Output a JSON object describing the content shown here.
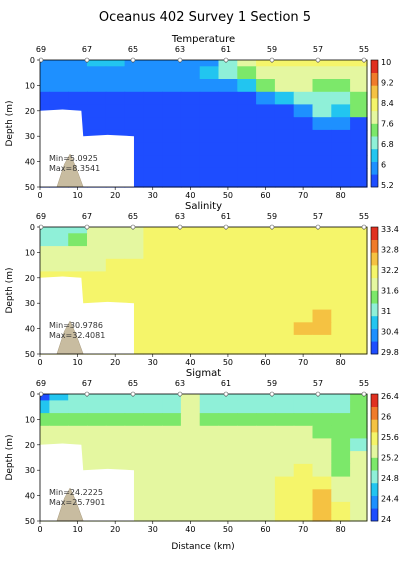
{
  "figure": {
    "title": "Oceanus 402 Survey 1 Section 5",
    "xlabel": "Distance (km)",
    "ylabel": "Depth (m)",
    "station_labels": [
      "69",
      "67",
      "65",
      "63",
      "61",
      "59",
      "57",
      "55"
    ],
    "x_ticks": [
      0,
      10,
      20,
      30,
      40,
      50,
      60,
      70,
      80
    ],
    "depth_ticks": [
      0,
      10,
      20,
      30,
      40,
      50
    ]
  },
  "chart_data": [
    {
      "type": "heatmap",
      "title": "Temperature",
      "xlabel": "",
      "ylabel": "Depth (m)",
      "xlim": [
        0,
        87
      ],
      "ylim": [
        50,
        0
      ],
      "stats": {
        "min": "Min=5.0925",
        "max": "Max=8.3541"
      },
      "colorbar": {
        "ticks": [
          "10",
          "9.2",
          "8.4",
          "7.6",
          "6.8",
          "6",
          "5.2"
        ],
        "range": [
          5.2,
          10
        ]
      },
      "x": [
        0,
        5,
        10,
        15,
        20,
        25,
        30,
        35,
        40,
        45,
        50,
        55,
        60,
        65,
        70,
        75,
        80,
        85
      ],
      "depth": [
        0,
        5,
        10,
        15,
        20,
        25,
        30,
        35,
        40,
        45,
        50
      ],
      "values": [
        [
          5.8,
          6.0,
          6.0,
          6.4,
          6.4,
          6.0,
          6.0,
          6.0,
          6.0,
          6.0,
          7.0,
          8.0,
          8.4,
          8.4,
          8.4,
          8.4,
          8.4,
          8.4
        ],
        [
          6.0,
          6.0,
          6.0,
          6.0,
          6.0,
          6.0,
          6.0,
          6.0,
          6.0,
          6.2,
          7.0,
          7.6,
          8.0,
          8.0,
          8.0,
          8.0,
          8.0,
          8.0
        ],
        [
          6.0,
          6.0,
          5.8,
          5.8,
          5.8,
          5.8,
          5.8,
          5.8,
          5.8,
          5.8,
          6.0,
          6.4,
          7.2,
          7.8,
          7.8,
          7.6,
          7.4,
          7.8
        ],
        [
          5.4,
          5.4,
          5.4,
          5.4,
          5.4,
          5.4,
          5.4,
          5.4,
          5.4,
          5.4,
          5.4,
          5.6,
          6.0,
          6.6,
          7.0,
          7.0,
          7.0,
          7.6
        ],
        [
          5.2,
          5.2,
          5.2,
          5.2,
          5.2,
          5.2,
          5.2,
          5.2,
          5.2,
          5.2,
          5.2,
          5.2,
          5.2,
          5.4,
          6.0,
          6.8,
          6.6,
          7.4
        ],
        [
          5.2,
          5.2,
          5.2,
          5.2,
          5.2,
          5.2,
          5.2,
          5.2,
          5.2,
          5.2,
          5.2,
          5.2,
          5.2,
          5.2,
          5.2,
          6.0,
          6.0,
          5.4
        ],
        [
          5.2,
          5.2,
          5.2,
          5.2,
          5.2,
          5.2,
          5.2,
          5.2,
          5.2,
          5.2,
          5.2,
          5.2,
          5.2,
          5.2,
          5.2,
          5.4,
          5.6,
          5.2
        ],
        [
          5.2,
          5.2,
          5.2,
          5.2,
          5.2,
          5.2,
          5.2,
          5.2,
          5.2,
          5.2,
          5.2,
          5.2,
          5.2,
          5.2,
          5.2,
          5.2,
          5.4,
          5.2
        ],
        [
          5.2,
          5.2,
          5.2,
          5.2,
          5.2,
          5.2,
          5.2,
          5.2,
          5.2,
          5.2,
          5.2,
          5.2,
          5.2,
          5.2,
          5.2,
          5.2,
          5.4,
          5.2
        ],
        [
          5.2,
          5.2,
          5.2,
          5.2,
          5.2,
          5.2,
          5.2,
          5.2,
          5.2,
          5.2,
          5.2,
          5.2,
          5.2,
          5.2,
          5.2,
          5.2,
          5.2,
          5.2
        ],
        [
          5.2,
          5.2,
          5.2,
          5.2,
          5.2,
          5.2,
          5.2,
          5.2,
          5.2,
          5.2,
          5.2,
          5.2,
          5.2,
          5.2,
          5.2,
          5.2,
          5.2,
          5.2
        ]
      ]
    },
    {
      "type": "heatmap",
      "title": "Salinity",
      "xlabel": "",
      "ylabel": "Depth (m)",
      "xlim": [
        0,
        87
      ],
      "ylim": [
        50,
        0
      ],
      "stats": {
        "min": "Min=30.9786",
        "max": "Max=32.4081"
      },
      "colorbar": {
        "ticks": [
          "33.4",
          "32.8",
          "32.2",
          "31.6",
          "31",
          "30.4",
          "29.8"
        ],
        "range": [
          29.8,
          33.4
        ]
      },
      "x": [
        0,
        5,
        10,
        15,
        20,
        25,
        30,
        35,
        40,
        45,
        50,
        55,
        60,
        65,
        70,
        75,
        80,
        85
      ],
      "depth": [
        0,
        5,
        10,
        15,
        20,
        25,
        30,
        35,
        40,
        45,
        50
      ],
      "values": [
        [
          30.9,
          31.2,
          31.2,
          31.6,
          31.6,
          31.6,
          32.0,
          32.0,
          32.0,
          32.0,
          32.0,
          32.0,
          32.0,
          32.0,
          32.0,
          32.0,
          32.0,
          32.0
        ],
        [
          31.2,
          31.2,
          31.4,
          31.6,
          31.6,
          31.6,
          32.0,
          32.0,
          32.0,
          32.0,
          32.0,
          32.0,
          32.0,
          32.0,
          32.0,
          32.0,
          32.0,
          32.0
        ],
        [
          31.6,
          31.6,
          31.6,
          31.6,
          31.6,
          31.6,
          32.0,
          32.0,
          32.0,
          32.0,
          32.0,
          32.0,
          32.0,
          32.0,
          32.0,
          32.0,
          32.0,
          32.0
        ],
        [
          31.6,
          31.6,
          31.6,
          31.6,
          32.0,
          32.0,
          32.0,
          32.0,
          32.0,
          32.0,
          32.0,
          32.0,
          32.0,
          32.0,
          32.0,
          32.0,
          32.0,
          32.0
        ],
        [
          32.0,
          32.0,
          32.0,
          32.0,
          32.0,
          32.0,
          32.0,
          32.0,
          32.0,
          32.0,
          32.0,
          32.0,
          32.0,
          32.0,
          32.0,
          32.0,
          32.0,
          32.0
        ],
        [
          32.0,
          32.0,
          32.0,
          32.0,
          32.0,
          32.0,
          32.0,
          32.0,
          32.0,
          32.0,
          32.0,
          32.0,
          32.0,
          32.0,
          32.0,
          32.0,
          32.0,
          32.0
        ],
        [
          32.0,
          32.0,
          32.0,
          32.0,
          32.0,
          32.0,
          32.0,
          32.0,
          32.0,
          32.0,
          32.0,
          32.0,
          32.1,
          32.2,
          32.2,
          32.3,
          32.2,
          32.0
        ],
        [
          32.0,
          32.0,
          32.0,
          32.0,
          32.0,
          32.0,
          32.0,
          32.0,
          32.0,
          32.0,
          32.0,
          32.0,
          32.2,
          32.3,
          32.3,
          32.4,
          32.3,
          32.0
        ],
        [
          32.0,
          32.0,
          32.0,
          32.0,
          32.0,
          32.0,
          32.0,
          32.0,
          32.0,
          32.0,
          32.0,
          32.0,
          32.2,
          32.3,
          32.4,
          32.4,
          32.3,
          32.0
        ],
        [
          32.0,
          32.0,
          32.0,
          32.0,
          32.0,
          32.0,
          32.0,
          32.0,
          32.0,
          32.0,
          32.0,
          32.0,
          32.0,
          32.2,
          32.3,
          32.3,
          32.2,
          32.0
        ],
        [
          32.0,
          32.0,
          32.0,
          32.0,
          32.0,
          32.0,
          32.0,
          32.0,
          32.0,
          32.0,
          32.0,
          32.0,
          32.0,
          32.0,
          32.0,
          32.0,
          32.0,
          32.0
        ]
      ]
    },
    {
      "type": "heatmap",
      "title": "Sigmat",
      "xlabel": "Distance (km)",
      "ylabel": "Depth (m)",
      "xlim": [
        0,
        87
      ],
      "ylim": [
        50,
        0
      ],
      "stats": {
        "min": "Min=24.2225",
        "max": "Max=25.7901"
      },
      "colorbar": {
        "ticks": [
          "26.4",
          "26",
          "25.6",
          "25.2",
          "24.8",
          "24.4",
          "24"
        ],
        "range": [
          24,
          26.4
        ]
      },
      "x": [
        0,
        5,
        10,
        15,
        20,
        25,
        30,
        35,
        40,
        45,
        50,
        55,
        60,
        65,
        70,
        75,
        80,
        85
      ],
      "depth": [
        0,
        5,
        10,
        15,
        20,
        25,
        30,
        35,
        40,
        45,
        50
      ],
      "values": [
        [
          24.2,
          24.5,
          24.8,
          24.8,
          24.8,
          24.8,
          24.8,
          24.8,
          25.2,
          24.8,
          24.8,
          24.8,
          24.8,
          24.8,
          24.8,
          24.8,
          24.8,
          25.0
        ],
        [
          24.6,
          24.8,
          24.8,
          24.8,
          24.8,
          24.8,
          24.8,
          24.8,
          25.2,
          24.8,
          24.8,
          24.8,
          24.8,
          24.8,
          24.8,
          24.8,
          24.8,
          25.0
        ],
        [
          25.0,
          25.0,
          25.0,
          25.0,
          25.0,
          25.0,
          25.0,
          25.0,
          25.2,
          25.0,
          25.0,
          25.0,
          25.0,
          25.0,
          25.0,
          25.0,
          25.0,
          25.0
        ],
        [
          25.2,
          25.2,
          25.2,
          25.2,
          25.2,
          25.2,
          25.2,
          25.2,
          25.2,
          25.2,
          25.2,
          25.2,
          25.2,
          25.2,
          25.2,
          25.0,
          25.0,
          25.0
        ],
        [
          25.3,
          25.3,
          25.3,
          25.3,
          25.3,
          25.3,
          25.3,
          25.3,
          25.3,
          25.3,
          25.3,
          25.3,
          25.3,
          25.3,
          25.3,
          25.2,
          25.0,
          24.9
        ],
        [
          25.4,
          25.4,
          25.4,
          25.4,
          25.4,
          25.4,
          25.4,
          25.4,
          25.4,
          25.4,
          25.4,
          25.4,
          25.4,
          25.4,
          25.4,
          25.2,
          25.0,
          25.2
        ],
        [
          25.4,
          25.4,
          25.4,
          25.4,
          25.4,
          25.4,
          25.4,
          25.4,
          25.4,
          25.4,
          25.4,
          25.4,
          25.4,
          25.4,
          25.5,
          25.3,
          25.1,
          25.3
        ],
        [
          25.4,
          25.4,
          25.4,
          25.4,
          25.4,
          25.4,
          25.4,
          25.4,
          25.4,
          25.4,
          25.4,
          25.4,
          25.4,
          25.5,
          25.6,
          25.5,
          25.2,
          25.4
        ],
        [
          25.4,
          25.4,
          25.4,
          25.4,
          25.4,
          25.4,
          25.4,
          25.4,
          25.4,
          25.4,
          25.4,
          25.4,
          25.4,
          25.5,
          25.6,
          25.7,
          25.4,
          25.4
        ],
        [
          25.4,
          25.4,
          25.4,
          25.4,
          25.4,
          25.4,
          25.4,
          25.4,
          25.4,
          25.4,
          25.4,
          25.4,
          25.4,
          25.5,
          25.6,
          25.7,
          25.5,
          25.4
        ],
        [
          25.4,
          25.4,
          25.4,
          25.4,
          25.4,
          25.4,
          25.4,
          25.4,
          25.4,
          25.4,
          25.4,
          25.4,
          25.4,
          25.5,
          25.6,
          25.7,
          25.5,
          25.4
        ]
      ]
    }
  ],
  "colormap": [
    "#1e4dff",
    "#1e90ff",
    "#22c5f0",
    "#8ff0d8",
    "#7ce86a",
    "#e4f7a0",
    "#f5f56a",
    "#f5c242",
    "#f07b2a",
    "#e03020"
  ]
}
